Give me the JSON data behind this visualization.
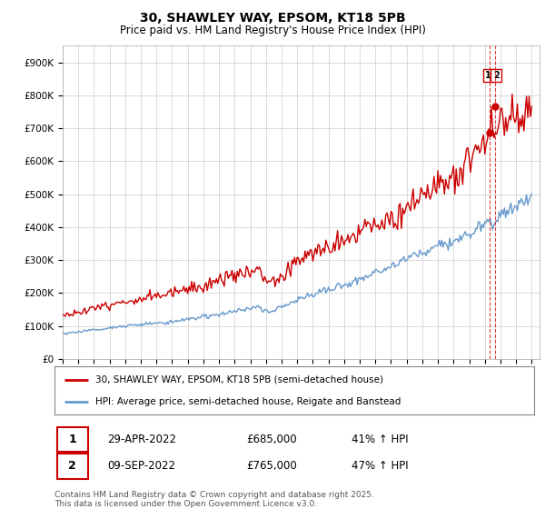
{
  "title": "30, SHAWLEY WAY, EPSOM, KT18 5PB",
  "subtitle": "Price paid vs. HM Land Registry's House Price Index (HPI)",
  "ylim": [
    0,
    950000
  ],
  "yticks": [
    0,
    100000,
    200000,
    300000,
    400000,
    500000,
    600000,
    700000,
    800000,
    900000
  ],
  "ytick_labels": [
    "£0",
    "£100K",
    "£200K",
    "£300K",
    "£400K",
    "£500K",
    "£600K",
    "£700K",
    "£800K",
    "£900K"
  ],
  "line1_color": "#cc0000",
  "line2_color": "#6699cc",
  "bg_color": "#ffffff",
  "grid_color": "#cccccc",
  "legend1_label": "30, SHAWLEY WAY, EPSOM, KT18 5PB (semi-detached house)",
  "legend2_label": "HPI: Average price, semi-detached house, Reigate and Banstead",
  "note1_date": "29-APR-2022",
  "note1_price": "£685,000",
  "note1_hpi": "41% ↑ HPI",
  "note2_date": "09-SEP-2022",
  "note2_price": "£765,000",
  "note2_hpi": "47% ↑ HPI",
  "copyright": "Contains HM Land Registry data © Crown copyright and database right 2025.\nThis data is licensed under the Open Government Licence v3.0.",
  "sale1_year": 2022.29,
  "sale1_price": 685000,
  "sale2_year": 2022.67,
  "sale2_price": 765000
}
